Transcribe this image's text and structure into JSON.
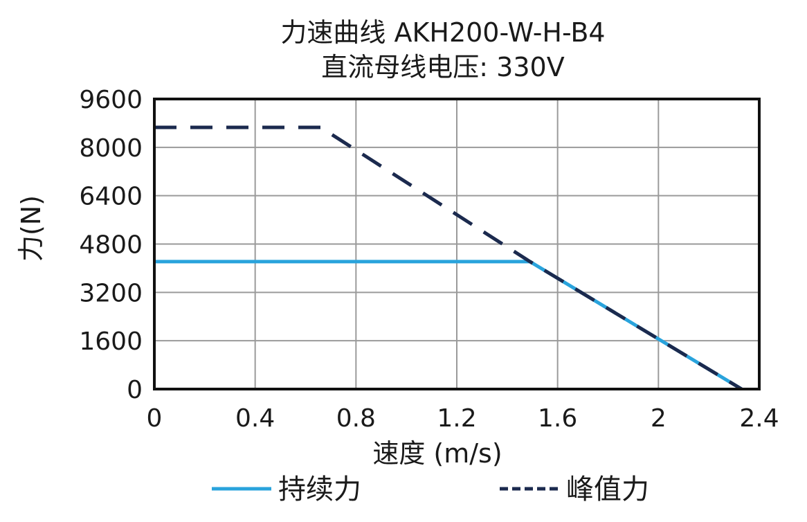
{
  "chart_data": {
    "type": "line",
    "title": "力速曲线 AKH200-W-H-B4",
    "subtitle": "直流母线电压: 330V",
    "xlabel": "速度 (m/s)",
    "ylabel": "力(N)",
    "xlim": [
      0,
      2.4
    ],
    "ylim": [
      0,
      9600
    ],
    "xticks": [
      0,
      0.4,
      0.8,
      1.2,
      1.6,
      2.0,
      2.4
    ],
    "xtick_labels": [
      "0",
      "0.4",
      "0.8",
      "1.2",
      "1.6",
      "2",
      "2.4"
    ],
    "yticks": [
      0,
      1600,
      3200,
      4800,
      6400,
      8000,
      9600
    ],
    "ytick_labels": [
      "0",
      "1600",
      "3200",
      "4800",
      "6400",
      "8000",
      "9600"
    ],
    "grid": true,
    "legend_position": "bottom",
    "series": [
      {
        "name": "持续力",
        "style": "solid",
        "color": "#29a3dc",
        "points": [
          [
            0,
            4220
          ],
          [
            1.49,
            4220
          ],
          [
            2.33,
            0
          ]
        ]
      },
      {
        "name": "峰值力",
        "style": "dashed",
        "color": "#1b2a4e",
        "points": [
          [
            0,
            8660
          ],
          [
            0.66,
            8660
          ],
          [
            1.49,
            4220
          ],
          [
            2.33,
            0
          ]
        ]
      }
    ]
  }
}
